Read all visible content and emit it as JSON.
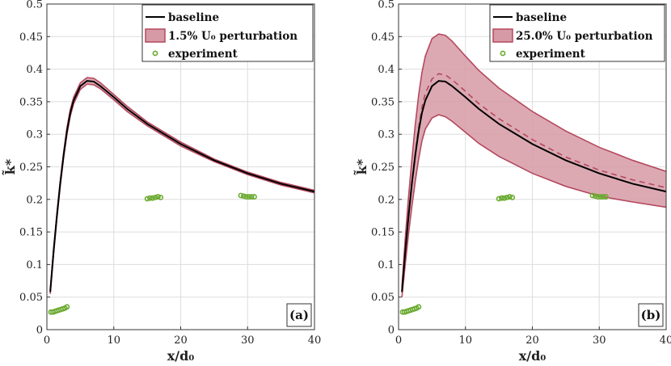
{
  "chart_data": [
    {
      "type": "line",
      "panel_label": "(a)",
      "xlabel": "x/d₀",
      "ylabel": "k̃*",
      "xlim": [
        0,
        40
      ],
      "ylim": [
        0,
        0.5
      ],
      "xticks": [
        "0",
        "10",
        "20",
        "30",
        "40"
      ],
      "yticks": [
        "0",
        "0.05",
        "0.1",
        "0.15",
        "0.2",
        "0.25",
        "0.3",
        "0.35",
        "0.4",
        "0.45",
        "0.5"
      ],
      "grid": true,
      "legend_position": "top-right",
      "series": [
        {
          "name": "baseline",
          "kind": "line",
          "color": "#000000",
          "x": [
            0.5,
            1,
            1.5,
            2,
            2.5,
            3,
            3.5,
            4,
            5,
            6,
            7,
            8,
            10,
            12,
            15,
            20,
            25,
            30,
            35,
            40
          ],
          "y": [
            0.058,
            0.12,
            0.175,
            0.225,
            0.268,
            0.305,
            0.333,
            0.352,
            0.374,
            0.382,
            0.381,
            0.374,
            0.357,
            0.339,
            0.316,
            0.285,
            0.26,
            0.24,
            0.224,
            0.212
          ]
        },
        {
          "name": "1.5% U₀ perturbation",
          "kind": "band",
          "fill": "#d69aa6",
          "stroke": "#b5485e",
          "x": [
            0.5,
            1,
            1.5,
            2,
            2.5,
            3,
            3.5,
            4,
            5,
            6,
            7,
            8,
            10,
            12,
            15,
            20,
            25,
            30,
            35,
            40
          ],
          "lower": [
            0.055,
            0.116,
            0.171,
            0.221,
            0.264,
            0.3,
            0.328,
            0.347,
            0.369,
            0.377,
            0.376,
            0.37,
            0.353,
            0.335,
            0.313,
            0.282,
            0.258,
            0.238,
            0.222,
            0.21
          ],
          "upper": [
            0.061,
            0.124,
            0.179,
            0.229,
            0.272,
            0.31,
            0.338,
            0.357,
            0.379,
            0.387,
            0.386,
            0.379,
            0.361,
            0.343,
            0.319,
            0.288,
            0.262,
            0.242,
            0.226,
            0.214
          ],
          "mid": []
        },
        {
          "name": "experiment",
          "kind": "scatter",
          "color": "#6aaa2f",
          "x": [
            0.6,
            0.9,
            1.2,
            1.5,
            1.8,
            2.1,
            2.4,
            2.7,
            3.0,
            15.0,
            15.4,
            15.8,
            16.2,
            16.6,
            17.0,
            29.0,
            29.4,
            29.8,
            30.2,
            30.6,
            31.0
          ],
          "y": [
            0.027,
            0.027,
            0.028,
            0.029,
            0.03,
            0.031,
            0.032,
            0.033,
            0.035,
            0.201,
            0.202,
            0.202,
            0.203,
            0.204,
            0.203,
            0.206,
            0.205,
            0.204,
            0.204,
            0.204,
            0.204
          ]
        }
      ]
    },
    {
      "type": "line",
      "panel_label": "(b)",
      "xlabel": "x/d₀",
      "ylabel": "k̃*",
      "xlim": [
        0,
        40
      ],
      "ylim": [
        0,
        0.5
      ],
      "xticks": [
        "0",
        "10",
        "20",
        "30",
        "40"
      ],
      "yticks": [
        "0",
        "0.05",
        "0.1",
        "0.15",
        "0.2",
        "0.25",
        "0.3",
        "0.35",
        "0.4",
        "0.45",
        "0.5"
      ],
      "grid": true,
      "legend_position": "top-right",
      "series": [
        {
          "name": "baseline",
          "kind": "line",
          "color": "#000000",
          "x": [
            0.5,
            1,
            1.5,
            2,
            2.5,
            3,
            3.5,
            4,
            5,
            6,
            7,
            8,
            10,
            12,
            15,
            20,
            25,
            30,
            35,
            40
          ],
          "y": [
            0.058,
            0.12,
            0.175,
            0.225,
            0.268,
            0.305,
            0.333,
            0.352,
            0.374,
            0.382,
            0.381,
            0.374,
            0.357,
            0.339,
            0.316,
            0.285,
            0.26,
            0.24,
            0.224,
            0.212
          ]
        },
        {
          "name": "25.0% U₀ perturbation",
          "kind": "band",
          "fill": "#d69aa6",
          "stroke": "#b5485e",
          "x": [
            0.5,
            1,
            1.5,
            2,
            2.5,
            3,
            3.5,
            4,
            5,
            6,
            7,
            8,
            10,
            12,
            15,
            20,
            25,
            30,
            35,
            40
          ],
          "lower": [
            0.05,
            0.1,
            0.148,
            0.19,
            0.228,
            0.262,
            0.29,
            0.308,
            0.325,
            0.33,
            0.327,
            0.32,
            0.303,
            0.286,
            0.266,
            0.24,
            0.22,
            0.205,
            0.196,
            0.188
          ],
          "upper": [
            0.065,
            0.14,
            0.205,
            0.262,
            0.315,
            0.36,
            0.395,
            0.42,
            0.447,
            0.454,
            0.452,
            0.443,
            0.42,
            0.398,
            0.371,
            0.335,
            0.305,
            0.28,
            0.26,
            0.243
          ],
          "mid": [
            0.057,
            0.12,
            0.178,
            0.228,
            0.272,
            0.31,
            0.342,
            0.363,
            0.385,
            0.393,
            0.391,
            0.384,
            0.366,
            0.347,
            0.324,
            0.292,
            0.265,
            0.245,
            0.23,
            0.218
          ]
        },
        {
          "name": "experiment",
          "kind": "scatter",
          "color": "#6aaa2f",
          "x": [
            0.6,
            0.9,
            1.2,
            1.5,
            1.8,
            2.1,
            2.4,
            2.7,
            3.0,
            15.0,
            15.4,
            15.8,
            16.2,
            16.6,
            17.0,
            29.0,
            29.4,
            29.8,
            30.2,
            30.6,
            31.0
          ],
          "y": [
            0.027,
            0.027,
            0.028,
            0.029,
            0.03,
            0.031,
            0.032,
            0.033,
            0.035,
            0.201,
            0.202,
            0.202,
            0.203,
            0.204,
            0.203,
            0.206,
            0.205,
            0.204,
            0.204,
            0.204,
            0.204
          ]
        }
      ]
    }
  ]
}
